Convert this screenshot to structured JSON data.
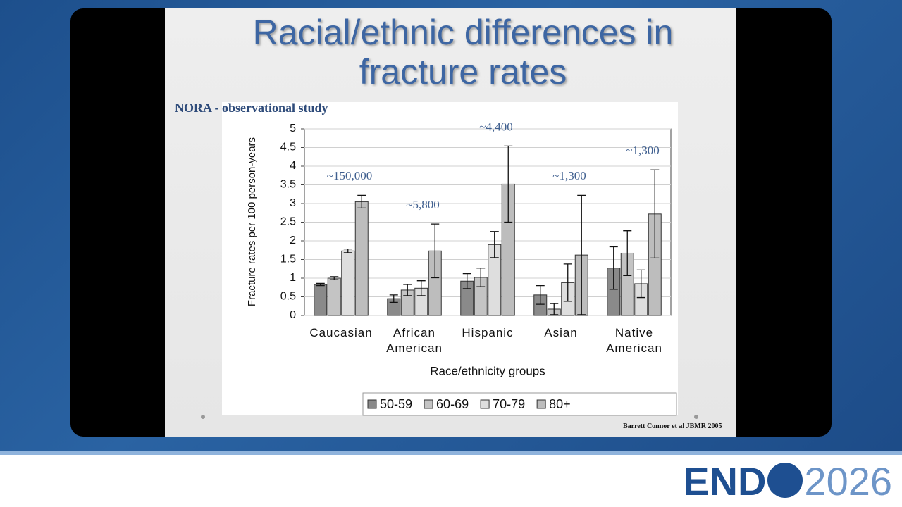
{
  "chart_data": {
    "type": "bar",
    "title": "Racial/ethnic differences in fracture rates",
    "subtitle": "NORA - observational study",
    "x_label": "Race/ethnicity groups",
    "y_label": "Fracture rates per 100 person-years",
    "source": "Barrett Connor et al JBMR 2005",
    "categories": [
      "Caucasian",
      "African American",
      "Hispanic",
      "Asian",
      "Native American"
    ],
    "annotations": [
      "~150,000",
      "~5,800",
      "~4,400",
      "~1,300",
      "~1,300"
    ],
    "series": [
      {
        "name": "50-59",
        "color": "#8a8a8a",
        "values": [
          0.83,
          0.45,
          0.92,
          0.55,
          1.27
        ],
        "errors": [
          0.03,
          0.1,
          0.2,
          0.25,
          0.57
        ]
      },
      {
        "name": "60-69",
        "color": "#c4c4c4",
        "values": [
          1.0,
          0.68,
          1.02,
          0.17,
          1.67
        ],
        "errors": [
          0.04,
          0.15,
          0.25,
          0.15,
          0.6
        ]
      },
      {
        "name": "70-79",
        "color": "#dedede",
        "values": [
          1.73,
          0.73,
          1.9,
          0.88,
          0.85
        ],
        "errors": [
          0.05,
          0.2,
          0.35,
          0.5,
          0.37
        ]
      },
      {
        "name": "80+",
        "color": "#bdbdbd",
        "values": [
          3.05,
          1.73,
          3.52,
          1.62,
          2.72
        ],
        "errors": [
          0.17,
          0.72,
          1.02,
          1.6,
          1.18
        ]
      }
    ],
    "ylim": [
      0,
      5
    ],
    "yticks": [
      0,
      0.5,
      1,
      1.5,
      2,
      2.5,
      3,
      3.5,
      4,
      4.5,
      5
    ],
    "grid": true,
    "legend": "bottom"
  },
  "branding": {
    "name": "END",
    "year": "2026"
  }
}
